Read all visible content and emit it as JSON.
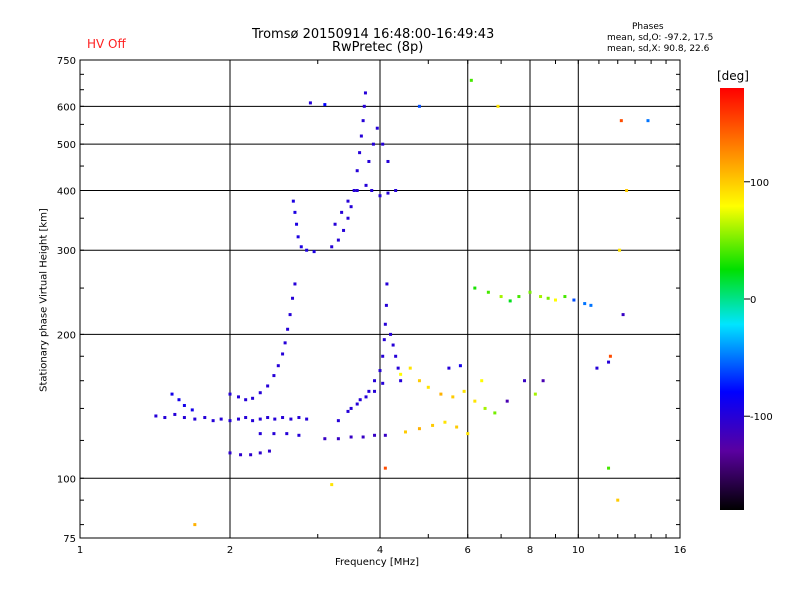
{
  "annotations": {
    "hv_status": "HV Off",
    "phases_title": "Phases",
    "phases_o": "mean, sd,O: -97.2, 17.5",
    "phases_x": "mean, sd,X: 90.8, 22.6"
  },
  "colorbar": {
    "unit": "[deg]",
    "range": [
      -180,
      180
    ],
    "tick_values": [
      100,
      0,
      -100
    ],
    "tick_labels": [
      "100",
      "0",
      "-100"
    ]
  },
  "colors": {
    "hv_off": "#ff2020",
    "grid": "#000000"
  },
  "chart_data": {
    "type": "scatter",
    "title": "Tromsø 20150914 16:48:00-16:49:43",
    "subtitle": "RwPretec (8p)",
    "xlabel": "Frequency [MHz]",
    "ylabel": "Stationary phase Virtual Height [km]",
    "x_scale": "log",
    "y_scale": "log",
    "xlim": [
      1,
      16
    ],
    "ylim": [
      75,
      750
    ],
    "xticks": [
      1,
      2,
      4,
      6,
      8,
      10,
      16
    ],
    "xtick_labels": [
      "1",
      "2",
      "4",
      "6",
      "8",
      "10",
      "16"
    ],
    "x_grid": [
      2,
      4,
      6,
      8,
      10
    ],
    "yticks": [
      75,
      100,
      200,
      300,
      400,
      500,
      600,
      750
    ],
    "ytick_labels": [
      "75",
      "100",
      "200",
      "300",
      "400",
      "500",
      "600",
      "750"
    ],
    "y_grid": [
      100,
      200,
      300,
      400,
      500,
      600
    ],
    "grid": true,
    "color_by": "phase_deg",
    "series": [
      {
        "points": [
          [
            1.42,
            135,
            -100
          ],
          [
            1.48,
            134,
            -100
          ],
          [
            1.55,
            136,
            -100
          ],
          [
            1.62,
            134,
            -100
          ],
          [
            1.7,
            133,
            -100
          ],
          [
            1.78,
            134,
            -100
          ],
          [
            1.85,
            132,
            -100
          ],
          [
            1.92,
            133,
            -100
          ],
          [
            2.0,
            132,
            -100
          ],
          [
            2.08,
            133,
            -100
          ],
          [
            2.15,
            134,
            -100
          ],
          [
            2.22,
            132,
            -100
          ],
          [
            2.3,
            133,
            -100
          ],
          [
            2.38,
            134,
            -100
          ],
          [
            2.46,
            133,
            -100
          ],
          [
            2.55,
            134,
            -100
          ],
          [
            2.65,
            133,
            -100
          ],
          [
            2.75,
            134,
            -100
          ],
          [
            2.85,
            133,
            -100
          ],
          [
            1.53,
            150,
            -90
          ],
          [
            1.58,
            146,
            -90
          ],
          [
            1.62,
            142,
            -90
          ],
          [
            1.68,
            139,
            -90
          ],
          [
            2.0,
            150,
            -100
          ],
          [
            2.08,
            148,
            -100
          ],
          [
            2.15,
            146,
            -100
          ],
          [
            2.22,
            147,
            -100
          ],
          [
            2.3,
            151,
            -100
          ],
          [
            2.38,
            156,
            -100
          ],
          [
            2.45,
            164,
            -100
          ],
          [
            2.5,
            172,
            -100
          ],
          [
            2.55,
            182,
            -100
          ],
          [
            2.58,
            192,
            -100
          ],
          [
            2.61,
            205,
            -100
          ],
          [
            2.64,
            220,
            -100
          ],
          [
            2.67,
            238,
            -100
          ],
          [
            2.7,
            255,
            -100
          ],
          [
            2.0,
            113,
            -105
          ],
          [
            2.1,
            112,
            -105
          ],
          [
            2.2,
            112,
            -105
          ],
          [
            2.3,
            113,
            -105
          ],
          [
            2.4,
            114,
            -105
          ],
          [
            2.3,
            124,
            -100
          ],
          [
            2.45,
            124,
            -100
          ],
          [
            2.6,
            124,
            -100
          ],
          [
            2.75,
            123,
            -100
          ],
          [
            2.68,
            380,
            -95
          ],
          [
            2.7,
            360,
            -95
          ],
          [
            2.72,
            340,
            -95
          ],
          [
            2.74,
            320,
            -95
          ],
          [
            2.78,
            305,
            -95
          ],
          [
            2.85,
            300,
            -95
          ],
          [
            2.95,
            298,
            -95
          ],
          [
            3.2,
            305,
            -100
          ],
          [
            3.3,
            315,
            -100
          ],
          [
            3.38,
            330,
            -100
          ],
          [
            3.45,
            350,
            -100
          ],
          [
            3.5,
            370,
            -100
          ],
          [
            3.55,
            400,
            -100
          ],
          [
            3.6,
            440,
            -100
          ],
          [
            3.64,
            480,
            -100
          ],
          [
            3.67,
            520,
            -100
          ],
          [
            3.7,
            560,
            -100
          ],
          [
            3.72,
            600,
            -100
          ],
          [
            3.74,
            640,
            -100
          ],
          [
            3.25,
            340,
            -100
          ],
          [
            3.35,
            360,
            -100
          ],
          [
            3.45,
            380,
            -100
          ],
          [
            3.6,
            400,
            -100
          ],
          [
            3.75,
            410,
            -100
          ],
          [
            3.85,
            400,
            -100
          ],
          [
            4.0,
            390,
            -100
          ],
          [
            4.15,
            395,
            -100
          ],
          [
            4.3,
            400,
            -100
          ],
          [
            3.8,
            460,
            -100
          ],
          [
            3.88,
            500,
            -100
          ],
          [
            3.95,
            540,
            -100
          ],
          [
            4.05,
            500,
            -100
          ],
          [
            4.15,
            460,
            -100
          ],
          [
            3.1,
            121,
            -110
          ],
          [
            3.3,
            121,
            -110
          ],
          [
            3.5,
            122,
            -110
          ],
          [
            3.7,
            122,
            -110
          ],
          [
            3.9,
            123,
            -110
          ],
          [
            4.1,
            123,
            -110
          ],
          [
            3.3,
            132,
            -100
          ],
          [
            3.45,
            138,
            -100
          ],
          [
            3.6,
            143,
            -100
          ],
          [
            3.75,
            148,
            -100
          ],
          [
            3.9,
            152,
            -100
          ],
          [
            4.05,
            158,
            -100
          ],
          [
            3.5,
            140,
            -100
          ],
          [
            3.65,
            146,
            -100
          ],
          [
            3.8,
            152,
            -100
          ],
          [
            3.9,
            160,
            -100
          ],
          [
            4.0,
            168,
            -100
          ],
          [
            4.05,
            180,
            -100
          ],
          [
            4.08,
            195,
            -100
          ],
          [
            4.1,
            210,
            -100
          ],
          [
            4.12,
            230,
            -100
          ],
          [
            4.13,
            255,
            -100
          ],
          [
            4.2,
            200,
            -100
          ],
          [
            4.25,
            190,
            -100
          ],
          [
            4.3,
            180,
            -100
          ],
          [
            4.35,
            170,
            -100
          ],
          [
            4.4,
            160,
            -100
          ],
          [
            2.9,
            610,
            -100
          ],
          [
            3.1,
            605,
            -80
          ],
          [
            4.8,
            600,
            -60
          ],
          [
            6.1,
            680,
            40
          ],
          [
            6.9,
            600,
            90
          ],
          [
            12.2,
            560,
            150
          ],
          [
            12.5,
            400,
            100
          ],
          [
            13.8,
            560,
            -50
          ],
          [
            12.1,
            300,
            90
          ],
          [
            12.3,
            220,
            -110
          ],
          [
            6.2,
            250,
            30
          ],
          [
            6.6,
            245,
            40
          ],
          [
            7.0,
            240,
            60
          ],
          [
            7.3,
            235,
            20
          ],
          [
            7.6,
            240,
            40
          ],
          [
            8.0,
            245,
            50
          ],
          [
            8.4,
            240,
            60
          ],
          [
            8.7,
            238,
            50
          ],
          [
            9.0,
            236,
            80
          ],
          [
            9.4,
            240,
            40
          ],
          [
            9.8,
            236,
            -60
          ],
          [
            10.3,
            232,
            -50
          ],
          [
            10.6,
            230,
            -50
          ],
          [
            4.4,
            165,
            80
          ],
          [
            4.6,
            170,
            90
          ],
          [
            4.8,
            160,
            100
          ],
          [
            5.0,
            155,
            90
          ],
          [
            5.3,
            150,
            110
          ],
          [
            5.6,
            148,
            100
          ],
          [
            5.9,
            152,
            90
          ],
          [
            6.2,
            145,
            90
          ],
          [
            6.5,
            140,
            60
          ],
          [
            6.8,
            137,
            50
          ],
          [
            4.5,
            125,
            100
          ],
          [
            4.8,
            127,
            110
          ],
          [
            5.1,
            129,
            100
          ],
          [
            5.4,
            131,
            90
          ],
          [
            5.7,
            128,
            100
          ],
          [
            6.0,
            124,
            90
          ],
          [
            5.5,
            170,
            -100
          ],
          [
            5.8,
            172,
            -90
          ],
          [
            6.4,
            160,
            80
          ],
          [
            7.2,
            145,
            -120
          ],
          [
            7.8,
            160,
            -110
          ],
          [
            8.2,
            150,
            60
          ],
          [
            8.5,
            160,
            -120
          ],
          [
            1.7,
            80,
            110
          ],
          [
            3.2,
            97,
            90
          ],
          [
            4.1,
            105,
            150
          ],
          [
            11.5,
            105,
            40
          ],
          [
            12.0,
            90,
            100
          ],
          [
            10.9,
            170,
            -100
          ],
          [
            11.5,
            175,
            -100
          ],
          [
            11.6,
            180,
            150
          ]
        ]
      }
    ]
  }
}
